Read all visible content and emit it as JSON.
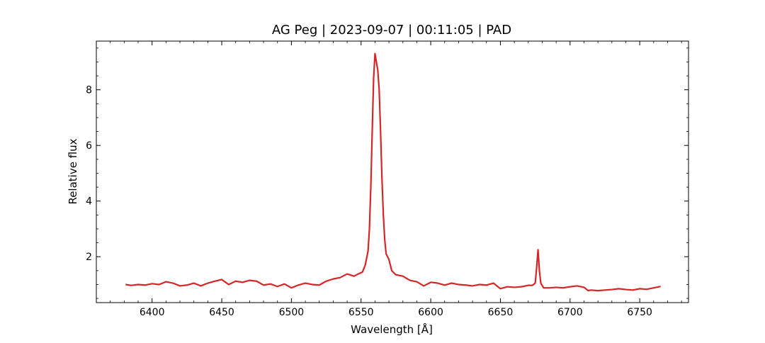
{
  "chart_data": {
    "type": "line",
    "title": "AG Peg | 2023-09-07 | 00:11:05 | PAD",
    "xlabel": "Wavelength [Å]",
    "ylabel": "Relative flux",
    "xlim": [
      6360,
      6785
    ],
    "ylim": [
      0.35,
      9.75
    ],
    "x_ticks": [
      6400,
      6450,
      6500,
      6550,
      6600,
      6650,
      6700,
      6750
    ],
    "x_tick_labels": [
      "6400",
      "6450",
      "6500",
      "6550",
      "6600",
      "6650",
      "6700",
      "6750"
    ],
    "y_ticks": [
      2,
      4,
      6,
      8
    ],
    "y_tick_labels": [
      "2",
      "4",
      "6",
      "8"
    ],
    "grid": false,
    "series": [
      {
        "color": "#d62728",
        "x": [
          6381,
          6385,
          6390,
          6395,
          6400,
          6405,
          6410,
          6415,
          6420,
          6425,
          6430,
          6435,
          6440,
          6445,
          6450,
          6455,
          6460,
          6465,
          6470,
          6475,
          6480,
          6485,
          6490,
          6495,
          6500,
          6505,
          6510,
          6515,
          6520,
          6525,
          6530,
          6535,
          6540,
          6545,
          6548,
          6551,
          6553,
          6555,
          6556,
          6557,
          6558,
          6559,
          6560,
          6561,
          6562,
          6563,
          6564,
          6565,
          6566,
          6567,
          6568,
          6570,
          6572,
          6575,
          6580,
          6585,
          6590,
          6595,
          6600,
          6605,
          6610,
          6615,
          6620,
          6625,
          6630,
          6635,
          6640,
          6645,
          6650,
          6655,
          6660,
          6665,
          6670,
          6673,
          6675,
          6676,
          6677,
          6678,
          6679,
          6681,
          6685,
          6690,
          6695,
          6700,
          6705,
          6710,
          6713,
          6715,
          6720,
          6725,
          6730,
          6735,
          6740,
          6745,
          6750,
          6755,
          6760,
          6765
        ],
        "values": [
          1.0,
          0.97,
          1.0,
          0.98,
          1.03,
          1.0,
          1.1,
          1.05,
          0.95,
          0.98,
          1.05,
          0.95,
          1.05,
          1.12,
          1.18,
          1.0,
          1.12,
          1.08,
          1.15,
          1.12,
          0.98,
          1.02,
          0.93,
          1.02,
          0.88,
          0.98,
          1.05,
          1.0,
          0.98,
          1.12,
          1.2,
          1.25,
          1.38,
          1.3,
          1.38,
          1.45,
          1.7,
          2.2,
          3.0,
          4.5,
          6.5,
          8.4,
          9.3,
          9.0,
          8.7,
          8.0,
          6.5,
          4.8,
          3.5,
          2.6,
          2.1,
          1.9,
          1.5,
          1.35,
          1.3,
          1.15,
          1.1,
          0.95,
          1.08,
          1.05,
          0.98,
          1.05,
          1.0,
          0.98,
          0.95,
          1.0,
          0.98,
          1.05,
          0.85,
          0.92,
          0.9,
          0.92,
          0.97,
          0.97,
          1.05,
          1.6,
          2.25,
          1.5,
          1.05,
          0.88,
          0.88,
          0.9,
          0.88,
          0.92,
          0.95,
          0.9,
          0.78,
          0.8,
          0.78,
          0.8,
          0.82,
          0.85,
          0.82,
          0.8,
          0.85,
          0.83,
          0.88,
          0.93
        ]
      }
    ]
  }
}
